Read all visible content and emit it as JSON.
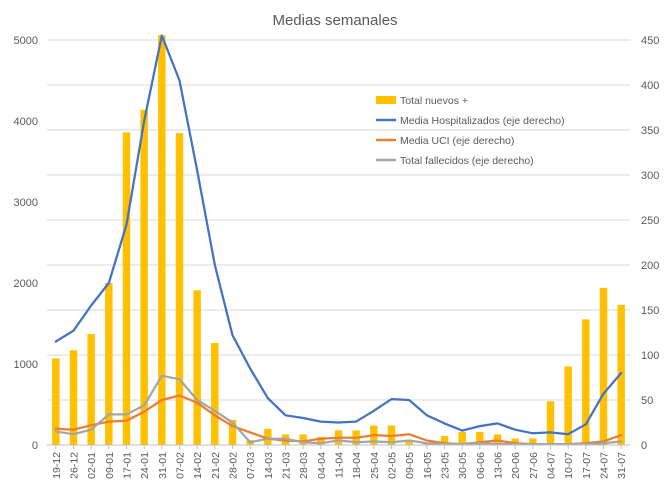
{
  "chart_data": {
    "type": "bar+line",
    "title": "Medias semanales",
    "categories": [
      "19-12",
      "26-12",
      "02-01",
      "09-01",
      "17-01",
      "24-01",
      "31-01",
      "07-02",
      "14-02",
      "21-02",
      "28-02",
      "07-03",
      "14-03",
      "21-03",
      "28-03",
      "04-04",
      "11-04",
      "18-04",
      "25-04",
      "02-05",
      "09-05",
      "16-05",
      "23-05",
      "30-05",
      "06-06",
      "13-06",
      "20-06",
      "27-06",
      "04-07",
      "10-07",
      "17-07",
      "24-07",
      "31-07"
    ],
    "y_left": {
      "min": 0,
      "max": 5000,
      "ticks": [
        0,
        1000,
        2000,
        3000,
        4000,
        5000
      ]
    },
    "y_right": {
      "min": 0,
      "max": 450,
      "ticks": [
        0,
        50,
        100,
        150,
        200,
        250,
        300,
        350,
        400,
        450
      ]
    },
    "series": [
      {
        "name": "Total nuevos +",
        "type": "bar",
        "axis": "left",
        "color": "#FFC000",
        "values": [
          1070,
          1170,
          1370,
          2000,
          3860,
          4140,
          5060,
          3850,
          1910,
          1260,
          310,
          60,
          200,
          130,
          130,
          100,
          180,
          180,
          240,
          240,
          60,
          30,
          110,
          160,
          160,
          130,
          80,
          80,
          540,
          970,
          1550,
          1940,
          1730
        ]
      },
      {
        "name": "Media Hospitalizados (eje derecho)",
        "type": "line",
        "axis": "right",
        "color": "#4472C4",
        "values": [
          115,
          127,
          155,
          180,
          245,
          360,
          455,
          405,
          305,
          200,
          122,
          85,
          52,
          33,
          30,
          26,
          25,
          26,
          38,
          51,
          50,
          33,
          24,
          16,
          21,
          24,
          17,
          13,
          14,
          12,
          23,
          57,
          80
        ]
      },
      {
        "name": "Media UCI (eje derecho)",
        "type": "line",
        "axis": "right",
        "color": "#ED7D31",
        "values": [
          18,
          17,
          22,
          26,
          27,
          37,
          50,
          55,
          47,
          33,
          21,
          14,
          7,
          5,
          4,
          7,
          8,
          8,
          11,
          10,
          12,
          5,
          2,
          1,
          3,
          5,
          2,
          1,
          1,
          1,
          2,
          4,
          11
        ]
      },
      {
        "name": "Total fallecidos (eje derecho)",
        "type": "line",
        "axis": "right",
        "color": "#A5A5A5",
        "values": [
          15,
          12,
          17,
          34,
          34,
          44,
          77,
          73,
          50,
          38,
          25,
          3,
          7,
          7,
          3,
          2,
          5,
          3,
          4,
          3,
          5,
          2,
          1,
          1,
          2,
          1,
          1,
          1,
          1,
          1,
          1,
          2,
          4
        ]
      }
    ],
    "legend": "inside-top-right"
  }
}
